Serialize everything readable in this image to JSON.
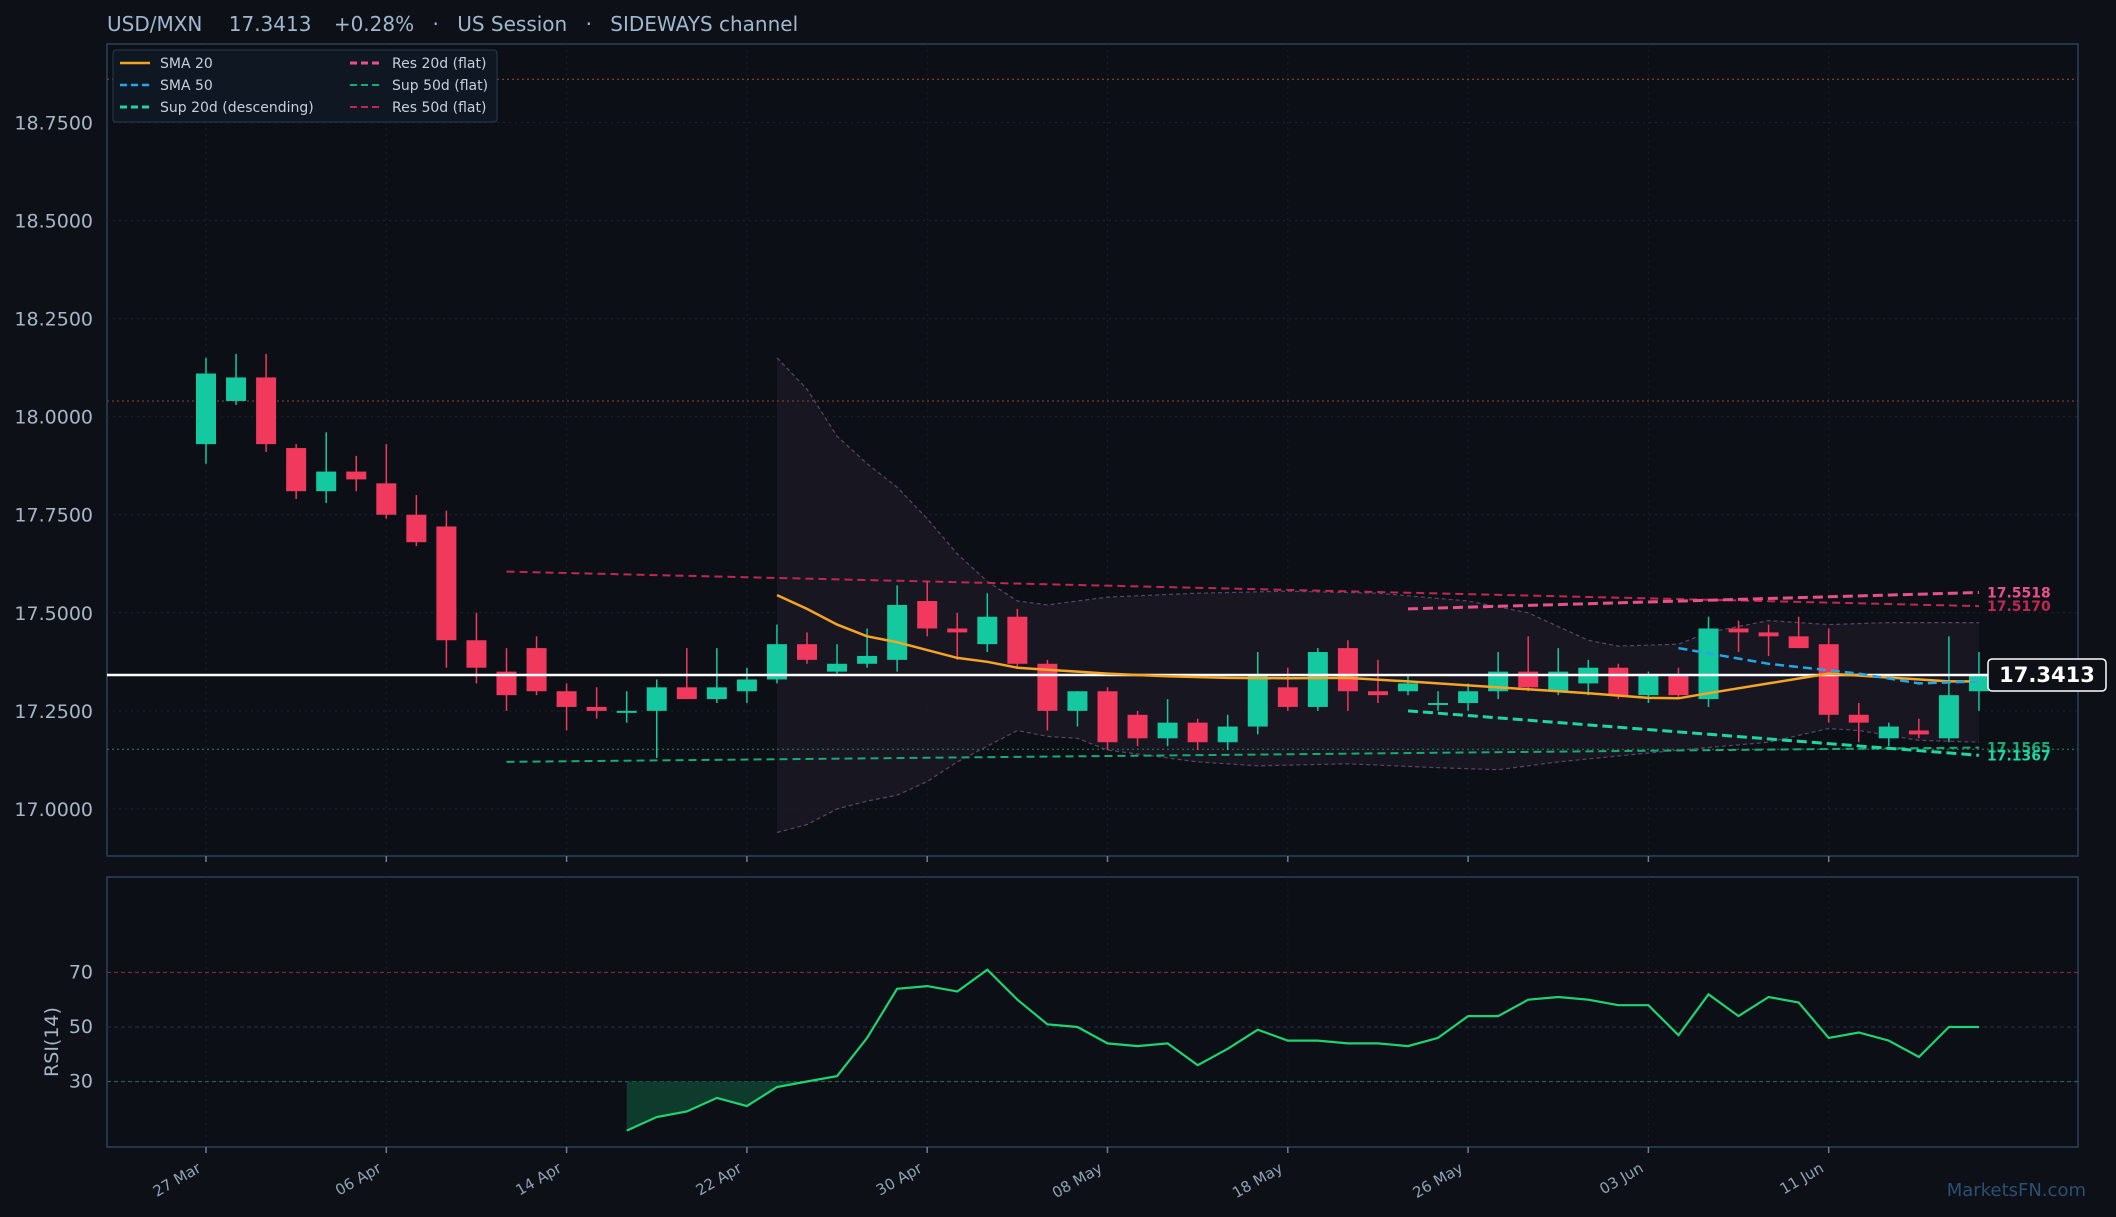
{
  "header": {
    "symbol": "USD/MXN",
    "price": "17.3413",
    "change": "+0.28%",
    "session": "US Session",
    "regime": "SIDEWAYS channel",
    "separator": "·"
  },
  "watermark": "MarketsFN.com",
  "colors": {
    "background": "#0d1117",
    "up": "#14c8a0",
    "down": "#f0395c",
    "sma20": "#f5a524",
    "sma50": "#20a8e8",
    "support": "#1ed6a0",
    "resistance": "#e8508a",
    "res50": "#c02850",
    "rsi": "#1fd470",
    "price_line": "#ffffff"
  },
  "legend": [
    {
      "label": "SMA 20",
      "color": "#f5a524",
      "style": "solid"
    },
    {
      "label": "SMA 50",
      "color": "#20a8e8",
      "style": "dashed"
    },
    {
      "label": "Sup 20d (descending)",
      "color": "#1ed6a0",
      "style": "dashed"
    },
    {
      "label": "Res 20d (flat)",
      "color": "#e8508a",
      "style": "dashed"
    },
    {
      "label": "Sup 50d (flat)",
      "color": "#1aa874",
      "style": "dashed"
    },
    {
      "label": "Res 50d (flat)",
      "color": "#c02850",
      "style": "dashed"
    }
  ],
  "chart_data": [
    {
      "type": "candlestick",
      "title": "USD/MXN 17.3413 +0.28% · US Session · SIDEWAYS channel",
      "ylim": [
        16.88,
        18.95
      ],
      "y_ticks": [
        "17.0000",
        "17.2500",
        "17.5000",
        "17.7500",
        "18.0000",
        "18.2500",
        "18.5000",
        "18.7500"
      ],
      "y_tick_values": [
        17.0,
        17.25,
        17.5,
        17.75,
        18.0,
        18.25,
        18.5,
        18.75
      ],
      "x_ticks": [
        "27 Mar",
        "06 Apr",
        "14 Apr",
        "22 Apr",
        "30 Apr",
        "08 May",
        "18 May",
        "26 May",
        "03 Jun",
        "11 Jun"
      ],
      "x_tick_index": [
        0,
        6,
        12,
        18,
        24,
        30,
        36,
        42,
        48,
        54
      ],
      "candles": [
        {
          "o": 17.93,
          "h": 18.15,
          "l": 17.88,
          "c": 18.11
        },
        {
          "o": 18.04,
          "h": 18.16,
          "l": 18.03,
          "c": 18.1
        },
        {
          "o": 18.1,
          "h": 18.16,
          "l": 17.91,
          "c": 17.93
        },
        {
          "o": 17.92,
          "h": 17.93,
          "l": 17.79,
          "c": 17.81
        },
        {
          "o": 17.81,
          "h": 17.96,
          "l": 17.78,
          "c": 17.86
        },
        {
          "o": 17.86,
          "h": 17.9,
          "l": 17.81,
          "c": 17.84
        },
        {
          "o": 17.83,
          "h": 17.93,
          "l": 17.74,
          "c": 17.75
        },
        {
          "o": 17.75,
          "h": 17.8,
          "l": 17.67,
          "c": 17.68
        },
        {
          "o": 17.72,
          "h": 17.76,
          "l": 17.36,
          "c": 17.43
        },
        {
          "o": 17.43,
          "h": 17.5,
          "l": 17.32,
          "c": 17.36
        },
        {
          "o": 17.35,
          "h": 17.41,
          "l": 17.25,
          "c": 17.29
        },
        {
          "o": 17.41,
          "h": 17.44,
          "l": 17.29,
          "c": 17.3
        },
        {
          "o": 17.3,
          "h": 17.32,
          "l": 17.2,
          "c": 17.26
        },
        {
          "o": 17.26,
          "h": 17.31,
          "l": 17.23,
          "c": 17.25
        },
        {
          "o": 17.25,
          "h": 17.3,
          "l": 17.22,
          "c": 17.25
        },
        {
          "o": 17.25,
          "h": 17.33,
          "l": 17.13,
          "c": 17.31
        },
        {
          "o": 17.31,
          "h": 17.41,
          "l": 17.28,
          "c": 17.28
        },
        {
          "o": 17.28,
          "h": 17.41,
          "l": 17.27,
          "c": 17.31
        },
        {
          "o": 17.3,
          "h": 17.36,
          "l": 17.27,
          "c": 17.33
        },
        {
          "o": 17.33,
          "h": 17.47,
          "l": 17.32,
          "c": 17.42
        },
        {
          "o": 17.42,
          "h": 17.45,
          "l": 17.37,
          "c": 17.38
        },
        {
          "o": 17.35,
          "h": 17.42,
          "l": 17.34,
          "c": 17.37
        },
        {
          "o": 17.37,
          "h": 17.46,
          "l": 17.36,
          "c": 17.39
        },
        {
          "o": 17.38,
          "h": 17.57,
          "l": 17.35,
          "c": 17.52
        },
        {
          "o": 17.53,
          "h": 17.58,
          "l": 17.44,
          "c": 17.46
        },
        {
          "o": 17.46,
          "h": 17.5,
          "l": 17.38,
          "c": 17.45
        },
        {
          "o": 17.42,
          "h": 17.55,
          "l": 17.4,
          "c": 17.49
        },
        {
          "o": 17.49,
          "h": 17.51,
          "l": 17.36,
          "c": 17.37
        },
        {
          "o": 17.37,
          "h": 17.38,
          "l": 17.2,
          "c": 17.25
        },
        {
          "o": 17.25,
          "h": 17.3,
          "l": 17.21,
          "c": 17.3
        },
        {
          "o": 17.3,
          "h": 17.31,
          "l": 17.15,
          "c": 17.17
        },
        {
          "o": 17.24,
          "h": 17.25,
          "l": 17.16,
          "c": 17.18
        },
        {
          "o": 17.18,
          "h": 17.28,
          "l": 17.16,
          "c": 17.22
        },
        {
          "o": 17.22,
          "h": 17.23,
          "l": 17.15,
          "c": 17.17
        },
        {
          "o": 17.17,
          "h": 17.24,
          "l": 17.15,
          "c": 17.21
        },
        {
          "o": 17.21,
          "h": 17.4,
          "l": 17.19,
          "c": 17.34
        },
        {
          "o": 17.31,
          "h": 17.36,
          "l": 17.25,
          "c": 17.26
        },
        {
          "o": 17.26,
          "h": 17.41,
          "l": 17.25,
          "c": 17.4
        },
        {
          "o": 17.41,
          "h": 17.43,
          "l": 17.25,
          "c": 17.3
        },
        {
          "o": 17.3,
          "h": 17.38,
          "l": 17.27,
          "c": 17.29
        },
        {
          "o": 17.3,
          "h": 17.34,
          "l": 17.29,
          "c": 17.32
        },
        {
          "o": 17.27,
          "h": 17.3,
          "l": 17.25,
          "c": 17.27
        },
        {
          "o": 17.27,
          "h": 17.32,
          "l": 17.25,
          "c": 17.3
        },
        {
          "o": 17.3,
          "h": 17.4,
          "l": 17.28,
          "c": 17.35
        },
        {
          "o": 17.35,
          "h": 17.44,
          "l": 17.3,
          "c": 17.31
        },
        {
          "o": 17.3,
          "h": 17.41,
          "l": 17.29,
          "c": 17.35
        },
        {
          "o": 17.32,
          "h": 17.38,
          "l": 17.29,
          "c": 17.36
        },
        {
          "o": 17.36,
          "h": 17.37,
          "l": 17.28,
          "c": 17.29
        },
        {
          "o": 17.29,
          "h": 17.35,
          "l": 17.27,
          "c": 17.34
        },
        {
          "o": 17.34,
          "h": 17.36,
          "l": 17.28,
          "c": 17.29
        },
        {
          "o": 17.28,
          "h": 17.49,
          "l": 17.26,
          "c": 17.46
        },
        {
          "o": 17.46,
          "h": 17.48,
          "l": 17.4,
          "c": 17.45
        },
        {
          "o": 17.45,
          "h": 17.47,
          "l": 17.39,
          "c": 17.44
        },
        {
          "o": 17.44,
          "h": 17.49,
          "l": 17.41,
          "c": 17.41
        },
        {
          "o": 17.42,
          "h": 17.46,
          "l": 17.22,
          "c": 17.24
        },
        {
          "o": 17.24,
          "h": 17.27,
          "l": 17.17,
          "c": 17.22
        },
        {
          "o": 17.18,
          "h": 17.22,
          "l": 17.16,
          "c": 17.21
        },
        {
          "o": 17.2,
          "h": 17.23,
          "l": 17.18,
          "c": 17.19
        },
        {
          "o": 17.18,
          "h": 17.44,
          "l": 17.17,
          "c": 17.29
        },
        {
          "o": 17.3,
          "h": 17.4,
          "l": 17.25,
          "c": 17.34
        }
      ],
      "sma20": [
        {
          "i": 19,
          "v": 17.545
        },
        {
          "i": 20,
          "v": 17.51
        },
        {
          "i": 21,
          "v": 17.47
        },
        {
          "i": 22,
          "v": 17.44
        },
        {
          "i": 23,
          "v": 17.425
        },
        {
          "i": 24,
          "v": 17.405
        },
        {
          "i": 25,
          "v": 17.385
        },
        {
          "i": 26,
          "v": 17.375
        },
        {
          "i": 27,
          "v": 17.36
        },
        {
          "i": 28,
          "v": 17.355
        },
        {
          "i": 29,
          "v": 17.35
        },
        {
          "i": 30,
          "v": 17.345
        },
        {
          "i": 32,
          "v": 17.338
        },
        {
          "i": 34,
          "v": 17.334
        },
        {
          "i": 36,
          "v": 17.333
        },
        {
          "i": 38,
          "v": 17.334
        },
        {
          "i": 40,
          "v": 17.325
        },
        {
          "i": 42,
          "v": 17.315
        },
        {
          "i": 44,
          "v": 17.305
        },
        {
          "i": 46,
          "v": 17.295
        },
        {
          "i": 48,
          "v": 17.283
        },
        {
          "i": 49,
          "v": 17.282
        },
        {
          "i": 50,
          "v": 17.295
        },
        {
          "i": 52,
          "v": 17.32
        },
        {
          "i": 54,
          "v": 17.345
        },
        {
          "i": 56,
          "v": 17.335
        },
        {
          "i": 58,
          "v": 17.325
        },
        {
          "i": 59,
          "v": 17.325
        }
      ],
      "sma50": [
        {
          "i": 49,
          "v": 17.41
        },
        {
          "i": 52,
          "v": 17.37
        },
        {
          "i": 55,
          "v": 17.345
        },
        {
          "i": 57,
          "v": 17.32
        },
        {
          "i": 59,
          "v": 17.325
        }
      ],
      "res20": {
        "from": 40,
        "to": 59,
        "start": 17.51,
        "end": 17.5518
      },
      "sup20": {
        "from": 40,
        "to": 59,
        "start": 17.25,
        "end": 17.1367
      },
      "res50": {
        "from": 10,
        "to": 59,
        "start": 17.605,
        "end": 17.517
      },
      "sup50": {
        "from": 10,
        "to": 59,
        "start": 17.12,
        "end": 17.1565
      },
      "bollinger_upper": [
        {
          "i": 19,
          "v": 18.15
        },
        {
          "i": 20,
          "v": 18.07
        },
        {
          "i": 21,
          "v": 17.95
        },
        {
          "i": 22,
          "v": 17.88
        },
        {
          "i": 23,
          "v": 17.82
        },
        {
          "i": 24,
          "v": 17.74
        },
        {
          "i": 25,
          "v": 17.65
        },
        {
          "i": 26,
          "v": 17.58
        },
        {
          "i": 27,
          "v": 17.53
        },
        {
          "i": 28,
          "v": 17.52
        },
        {
          "i": 30,
          "v": 17.54
        },
        {
          "i": 33,
          "v": 17.55
        },
        {
          "i": 36,
          "v": 17.555
        },
        {
          "i": 39,
          "v": 17.55
        },
        {
          "i": 42,
          "v": 17.53
        },
        {
          "i": 44,
          "v": 17.5
        },
        {
          "i": 46,
          "v": 17.43
        },
        {
          "i": 47,
          "v": 17.415
        },
        {
          "i": 49,
          "v": 17.42
        },
        {
          "i": 50,
          "v": 17.45
        },
        {
          "i": 52,
          "v": 17.48
        },
        {
          "i": 54,
          "v": 17.47
        },
        {
          "i": 56,
          "v": 17.475
        },
        {
          "i": 59,
          "v": 17.475
        }
      ],
      "bollinger_lower": [
        {
          "i": 19,
          "v": 16.94
        },
        {
          "i": 20,
          "v": 16.96
        },
        {
          "i": 21,
          "v": 17.0
        },
        {
          "i": 22,
          "v": 17.02
        },
        {
          "i": 23,
          "v": 17.035
        },
        {
          "i": 24,
          "v": 17.07
        },
        {
          "i": 25,
          "v": 17.12
        },
        {
          "i": 26,
          "v": 17.16
        },
        {
          "i": 27,
          "v": 17.2
        },
        {
          "i": 28,
          "v": 17.185
        },
        {
          "i": 29,
          "v": 17.18
        },
        {
          "i": 30,
          "v": 17.15
        },
        {
          "i": 31,
          "v": 17.14
        },
        {
          "i": 33,
          "v": 17.12
        },
        {
          "i": 35,
          "v": 17.11
        },
        {
          "i": 38,
          "v": 17.115
        },
        {
          "i": 41,
          "v": 17.105
        },
        {
          "i": 43,
          "v": 17.1
        },
        {
          "i": 45,
          "v": 17.12
        },
        {
          "i": 47,
          "v": 17.135
        },
        {
          "i": 49,
          "v": 17.15
        },
        {
          "i": 52,
          "v": 17.17
        },
        {
          "i": 54,
          "v": 17.205
        },
        {
          "i": 55,
          "v": 17.2
        },
        {
          "i": 57,
          "v": 17.175
        },
        {
          "i": 59,
          "v": 17.17
        }
      ],
      "horizontal_levels": [
        {
          "value": 18.86,
          "color": "#7a3a2a",
          "style": "dotted"
        },
        {
          "value": 18.04,
          "color": "#7a3a2a",
          "style": "dotted"
        },
        {
          "value": 17.152,
          "color": "#1f6a44",
          "style": "dotted"
        }
      ],
      "last_price": 17.3413,
      "last_price_label": "17.3413",
      "level_labels": [
        {
          "text": "17.5518",
          "value": 17.5518,
          "color": "#e8508a"
        },
        {
          "text": "17.5170",
          "value": 17.517,
          "color": "#c02850"
        },
        {
          "text": "17.1565",
          "value": 17.1565,
          "color": "#1aa874"
        },
        {
          "text": "17.1367",
          "value": 17.1367,
          "color": "#1ed6a0"
        }
      ]
    },
    {
      "type": "line",
      "ylabel": "RSI(14)",
      "ylim": [
        6,
        105
      ],
      "y_ticks": [
        "30",
        "50",
        "70"
      ],
      "y_tick_values": [
        30,
        50,
        70
      ],
      "overbought": 70,
      "oversold": 30,
      "rsi": [
        {
          "i": 14,
          "v": 12
        },
        {
          "i": 15,
          "v": 17
        },
        {
          "i": 16,
          "v": 19
        },
        {
          "i": 17,
          "v": 24
        },
        {
          "i": 18,
          "v": 21
        },
        {
          "i": 19,
          "v": 28
        },
        {
          "i": 20,
          "v": 30
        },
        {
          "i": 21,
          "v": 32
        },
        {
          "i": 22,
          "v": 46
        },
        {
          "i": 23,
          "v": 64
        },
        {
          "i": 24,
          "v": 65
        },
        {
          "i": 25,
          "v": 63
        },
        {
          "i": 26,
          "v": 71
        },
        {
          "i": 27,
          "v": 60
        },
        {
          "i": 28,
          "v": 51
        },
        {
          "i": 29,
          "v": 50
        },
        {
          "i": 30,
          "v": 44
        },
        {
          "i": 31,
          "v": 43
        },
        {
          "i": 32,
          "v": 44
        },
        {
          "i": 33,
          "v": 36
        },
        {
          "i": 34,
          "v": 42
        },
        {
          "i": 35,
          "v": 49
        },
        {
          "i": 36,
          "v": 45
        },
        {
          "i": 37,
          "v": 45
        },
        {
          "i": 38,
          "v": 44
        },
        {
          "i": 39,
          "v": 44
        },
        {
          "i": 40,
          "v": 43
        },
        {
          "i": 41,
          "v": 46
        },
        {
          "i": 42,
          "v": 54
        },
        {
          "i": 43,
          "v": 54
        },
        {
          "i": 44,
          "v": 60
        },
        {
          "i": 45,
          "v": 61
        },
        {
          "i": 46,
          "v": 60
        },
        {
          "i": 47,
          "v": 58
        },
        {
          "i": 48,
          "v": 58
        },
        {
          "i": 49,
          "v": 47
        },
        {
          "i": 50,
          "v": 62
        },
        {
          "i": 51,
          "v": 54
        },
        {
          "i": 52,
          "v": 61
        },
        {
          "i": 53,
          "v": 59
        },
        {
          "i": 54,
          "v": 46
        },
        {
          "i": 55,
          "v": 48
        },
        {
          "i": 56,
          "v": 45
        },
        {
          "i": 57,
          "v": 39
        },
        {
          "i": 58,
          "v": 50
        },
        {
          "i": 59,
          "v": 50
        }
      ]
    }
  ]
}
